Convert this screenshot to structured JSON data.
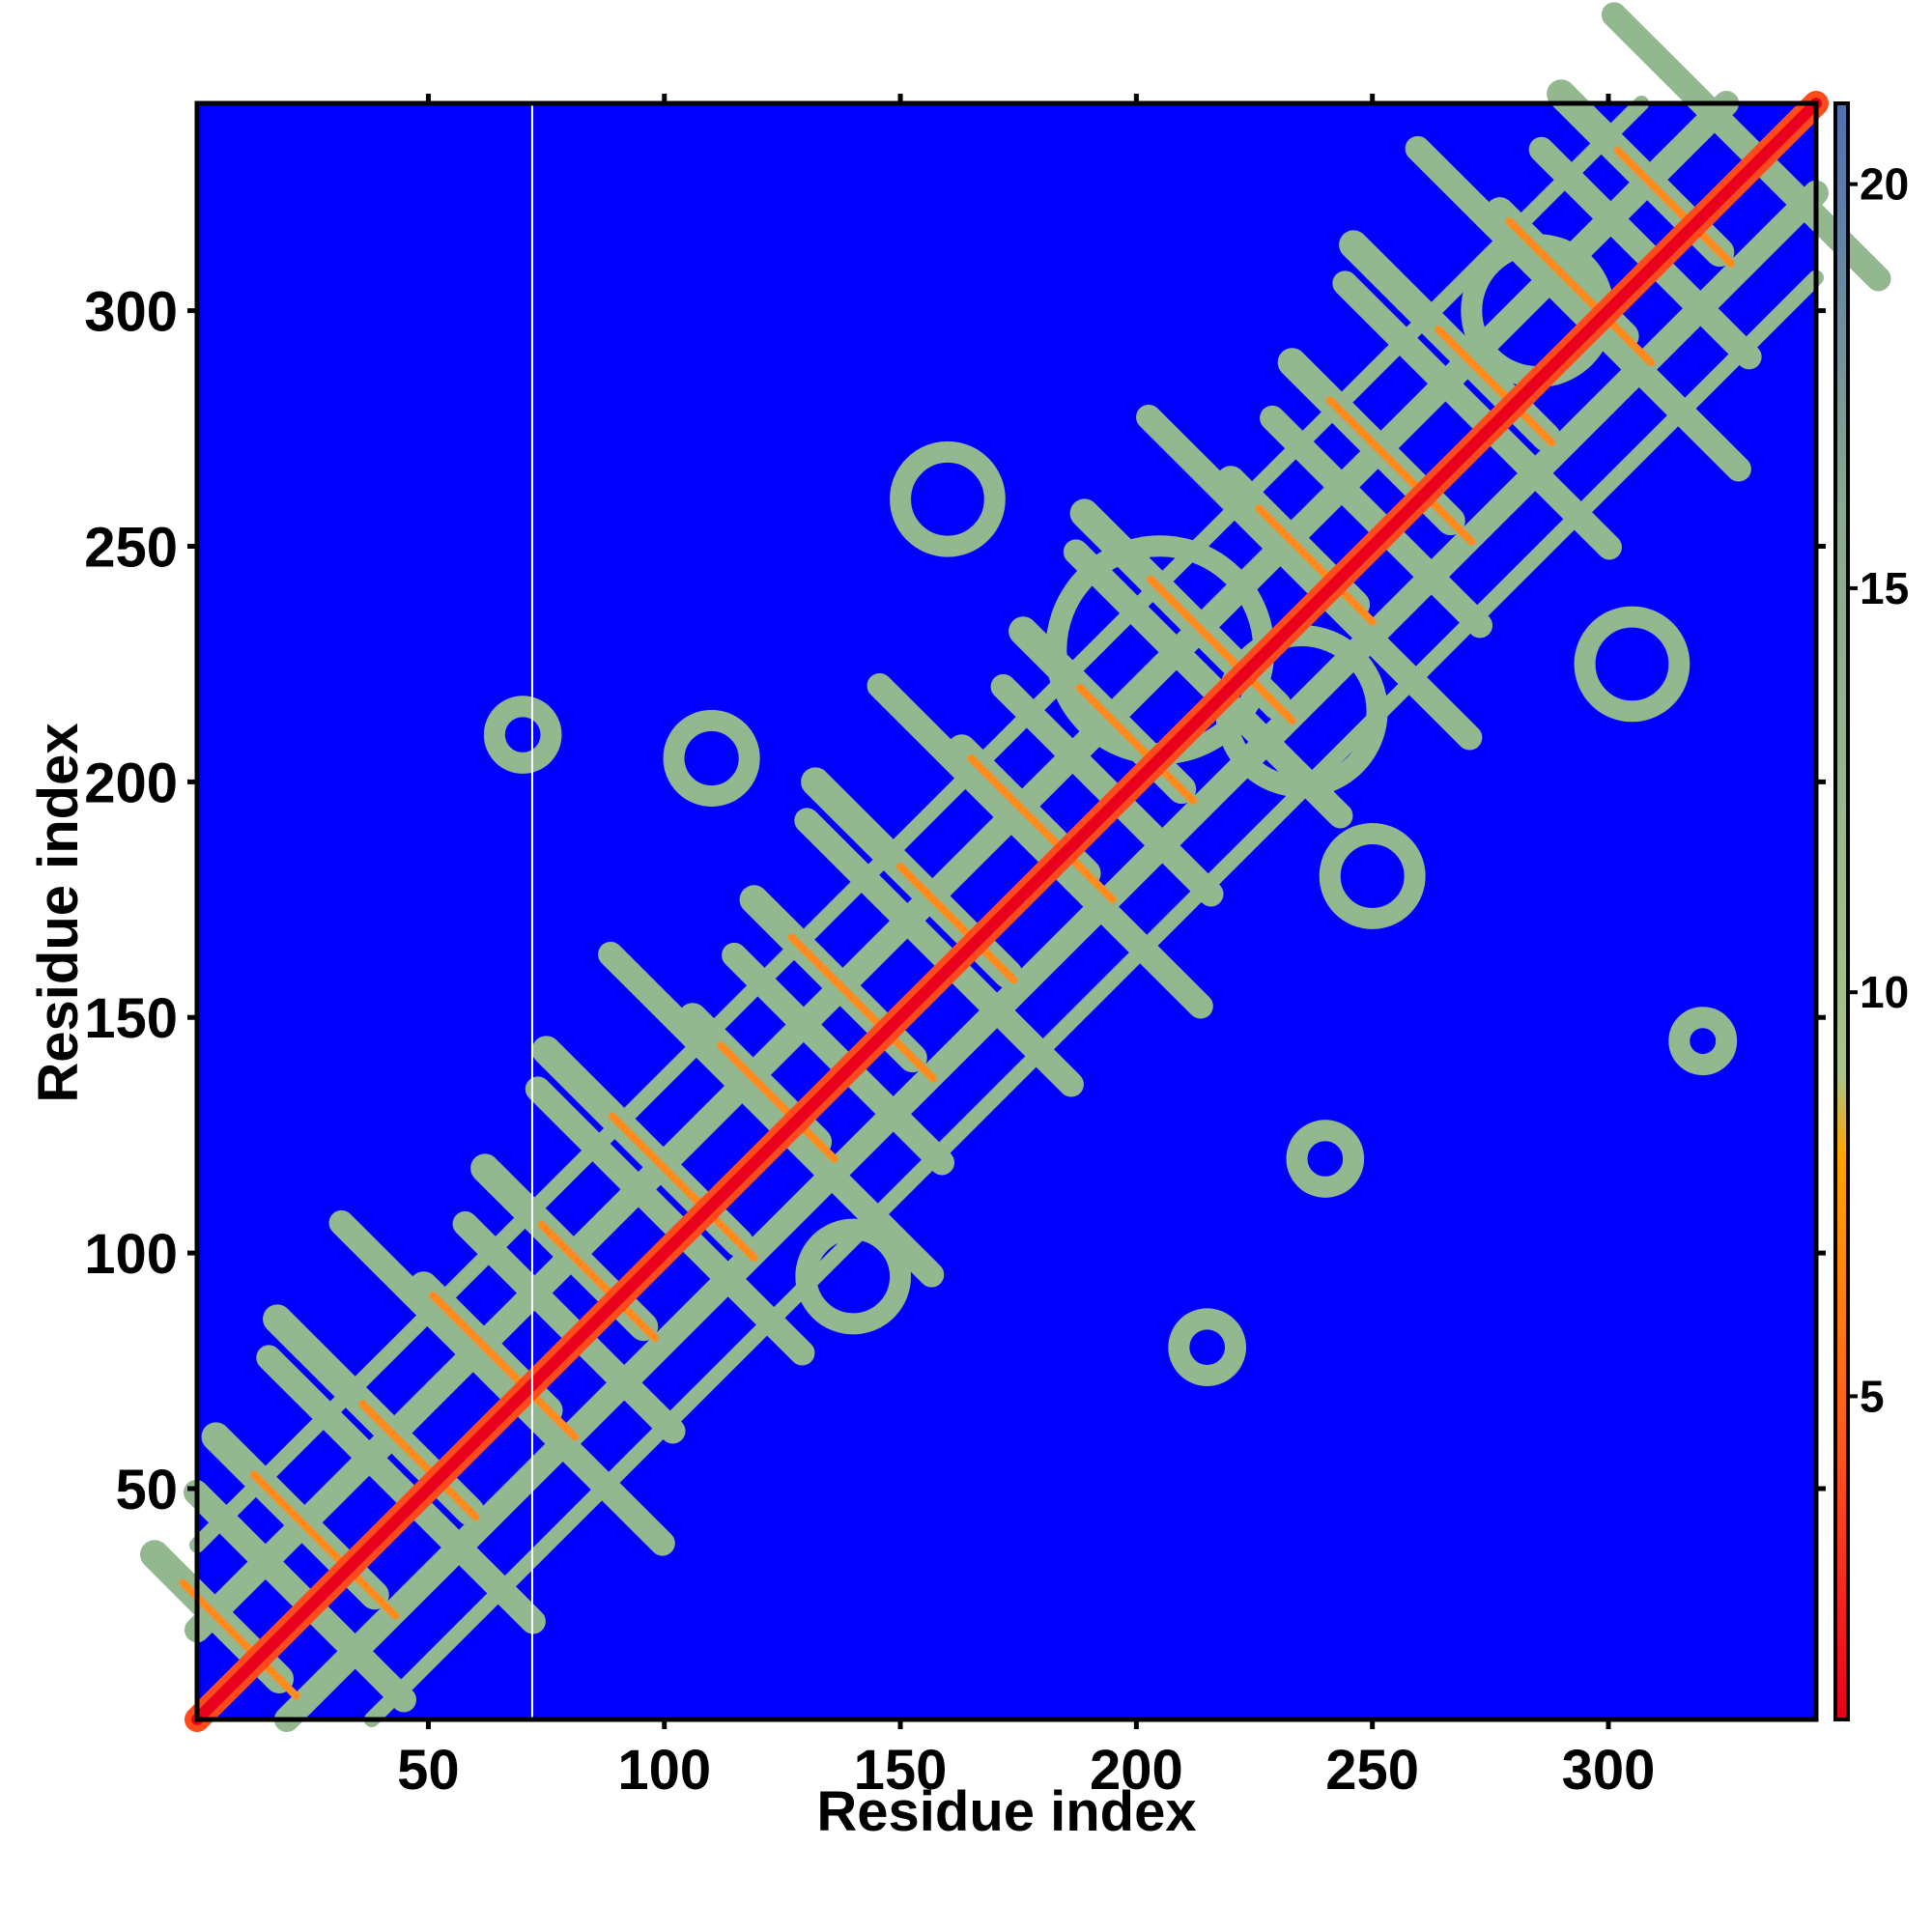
{
  "chart_data": {
    "type": "heatmap",
    "title": "",
    "xlabel": "Residue index",
    "ylabel": "Residue index",
    "xlim": [
      1,
      344
    ],
    "ylim": [
      1,
      344
    ],
    "x_ticks": [
      50,
      100,
      150,
      200,
      250,
      300
    ],
    "y_ticks": [
      50,
      100,
      150,
      200,
      250,
      300
    ],
    "x_tick_labels": [
      "50",
      "100",
      "150",
      "200",
      "250",
      "300"
    ],
    "y_tick_labels": [
      "50",
      "100",
      "150",
      "200",
      "250",
      "300"
    ],
    "grid": false,
    "legend": "colorbar-right",
    "colorbar": {
      "min": 1,
      "max": 21,
      "ticks": [
        5,
        10,
        15,
        20
      ],
      "tick_labels": [
        "5",
        "10",
        "15",
        "20"
      ],
      "stops": [
        {
          "value": 1,
          "color": "#e8001c"
        },
        {
          "value": 4.5,
          "color": "#ff5a1e"
        },
        {
          "value": 8,
          "color": "#ffa500"
        },
        {
          "value": 9,
          "color": "#a8c488"
        },
        {
          "value": 16,
          "color": "#88a890"
        },
        {
          "value": 21,
          "color": "#5070b0"
        }
      ],
      "background_color": "#0000ff"
    },
    "description_of_values": "Inter-residue distance map (contact map) showing a strong diagonal and periodic off-diagonal crossing bands typical of a repeat protein"
  }
}
